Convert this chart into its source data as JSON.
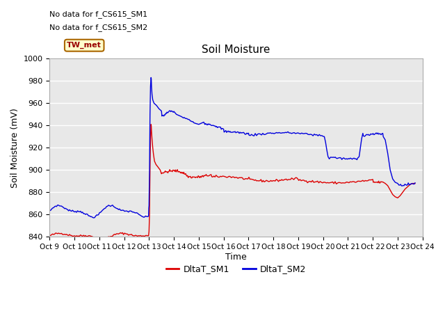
{
  "title": "Soil Moisture",
  "ylabel": "Soil Moisture (mV)",
  "xlabel": "Time",
  "ylim": [
    840,
    1000
  ],
  "xlim": [
    0,
    15
  ],
  "x_tick_labels": [
    "Oct 9",
    "Oct 10",
    "Oct 11",
    "Oct 12",
    "Oct 13",
    "Oct 14",
    "Oct 15",
    "Oct 16",
    "Oct 17",
    "Oct 18",
    "Oct 19",
    "Oct 20",
    "Oct 21",
    "Oct 22",
    "Oct 23",
    "Oct 24"
  ],
  "no_data_text1": "No data for f_CS615_SM1",
  "no_data_text2": "No data for f_CS615_SM2",
  "station_label": "TW_met",
  "station_box_facecolor": "#ffffcc",
  "station_box_edgecolor": "#aa6600",
  "background_color": "#e8e8e8",
  "legend_labels": [
    "DltaT_SM1",
    "DltaT_SM2"
  ],
  "legend_colors": [
    "#dd0000",
    "#0000dd"
  ],
  "fig_width": 6.4,
  "fig_height": 4.8,
  "dpi": 100
}
